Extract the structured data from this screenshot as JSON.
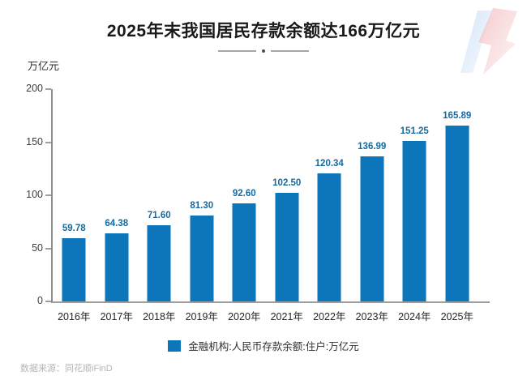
{
  "title": "2025年末我国居民存款余额达166万亿元",
  "source_note": "数据来源：同花顺iFinD",
  "colors": {
    "bar": "#0D76BB",
    "value_label": "#17699F",
    "axis": "#9E9E9E",
    "title_text": "#191919",
    "source_text": "#B5B5B6",
    "watermark_blue": "#D9E7F8",
    "watermark_pink": "#F5C9CB"
  },
  "chart_data": {
    "type": "bar",
    "title": "2025年末我国居民存款余额达166万亿元",
    "unit_label": "万亿元",
    "xlabel": "",
    "ylabel": "万亿元",
    "categories": [
      "2016年",
      "2017年",
      "2018年",
      "2019年",
      "2020年",
      "2021年",
      "2022年",
      "2023年",
      "2024年",
      "2025年"
    ],
    "values": [
      59.78,
      64.38,
      71.6,
      81.3,
      92.6,
      102.5,
      120.34,
      136.99,
      151.25,
      165.89
    ],
    "value_labels": [
      "59.78",
      "64.38",
      "71.60",
      "81.30",
      "92.60",
      "102.50",
      "120.34",
      "136.99",
      "151.25",
      "165.89"
    ],
    "ylim": [
      0,
      200
    ],
    "yticks": [
      0,
      50,
      100,
      150,
      200
    ],
    "grid": false,
    "legend": {
      "position": "bottom",
      "label": "金融机构:人民币存款余额:住户:万亿元",
      "swatch_color": "#0D76BB"
    }
  }
}
